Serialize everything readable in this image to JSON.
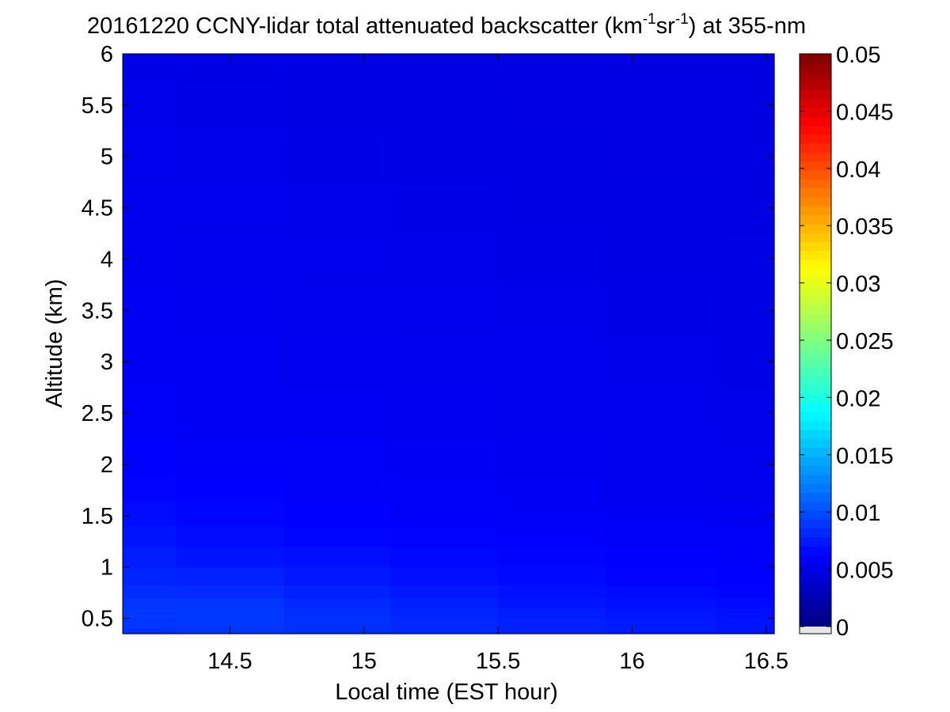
{
  "chart_data": {
    "type": "heatmap",
    "title": {
      "prefix": "20161220 CCNY-lidar total attenuated backscatter (km",
      "sup1": "-1",
      "middle": "sr",
      "sup2": "-1",
      "suffix": ") at 355-nm"
    },
    "xlabel": "Local time (EST hour)",
    "ylabel": "Altitude (km)",
    "xlim": [
      14.1,
      16.53
    ],
    "ylim": [
      0.35,
      6
    ],
    "xticks": [
      14.5,
      15,
      15.5,
      16,
      16.5
    ],
    "xtick_labels": [
      "14.5",
      "15",
      "15.5",
      "16",
      "16.5"
    ],
    "yticks": [
      0.5,
      1,
      1.5,
      2,
      2.5,
      3,
      3.5,
      4,
      4.5,
      5,
      5.5,
      6
    ],
    "ytick_labels": [
      "0.5",
      "1",
      "1.5",
      "2",
      "2.5",
      "3",
      "3.5",
      "4",
      "4.5",
      "5",
      "5.5",
      "6"
    ],
    "colorbar": {
      "colormap": "jet",
      "clim": [
        0,
        0.05
      ],
      "ticks": [
        0,
        0.005,
        0.01,
        0.015,
        0.02,
        0.025,
        0.03,
        0.035,
        0.04,
        0.045,
        0.05
      ],
      "tick_labels": [
        "0",
        "0.005",
        "0.01",
        "0.015",
        "0.02",
        "0.025",
        "0.03",
        "0.035",
        "0.04",
        "0.045",
        "0.05"
      ],
      "under_color": "#e6e6e6"
    },
    "x": [
      14.1,
      14.5,
      14.9,
      15.3,
      15.7,
      16.1,
      16.53
    ],
    "y": [
      0.35,
      0.45,
      0.55,
      0.65,
      0.75,
      0.9,
      1.1,
      1.3,
      1.5,
      1.75,
      2,
      2.5,
      3,
      3.5,
      4,
      4.5,
      5,
      5.5,
      6
    ],
    "values": [
      [
        0.0085,
        0.0088,
        0.0085,
        0.0082,
        0.0078,
        0.0075,
        0.0072
      ],
      [
        0.0088,
        0.009,
        0.0086,
        0.0082,
        0.0078,
        0.0075,
        0.0072
      ],
      [
        0.009,
        0.009,
        0.0085,
        0.008,
        0.0076,
        0.0073,
        0.007
      ],
      [
        0.0088,
        0.0088,
        0.0082,
        0.0077,
        0.0073,
        0.007,
        0.0067
      ],
      [
        0.0084,
        0.0083,
        0.0078,
        0.0074,
        0.007,
        0.0067,
        0.0064
      ],
      [
        0.008,
        0.0078,
        0.0074,
        0.007,
        0.0067,
        0.0064,
        0.0062
      ],
      [
        0.0076,
        0.0072,
        0.0069,
        0.0066,
        0.0064,
        0.0062,
        0.006
      ],
      [
        0.0072,
        0.0068,
        0.0065,
        0.0063,
        0.0061,
        0.0059,
        0.0058
      ],
      [
        0.0068,
        0.0065,
        0.0062,
        0.006,
        0.0058,
        0.0057,
        0.0056
      ],
      [
        0.0064,
        0.0062,
        0.006,
        0.0058,
        0.0057,
        0.0055,
        0.0054
      ],
      [
        0.0062,
        0.006,
        0.0058,
        0.0057,
        0.0055,
        0.0054,
        0.0053
      ],
      [
        0.0059,
        0.0057,
        0.0056,
        0.0055,
        0.0054,
        0.0053,
        0.0052
      ],
      [
        0.0057,
        0.0056,
        0.0055,
        0.0054,
        0.0053,
        0.0052,
        0.0051
      ],
      [
        0.0056,
        0.0055,
        0.0054,
        0.0053,
        0.0052,
        0.0051,
        0.005
      ],
      [
        0.0055,
        0.0054,
        0.0053,
        0.0052,
        0.0051,
        0.005,
        0.005
      ],
      [
        0.0054,
        0.0053,
        0.0052,
        0.0051,
        0.005,
        0.005,
        0.0049
      ],
      [
        0.0053,
        0.0052,
        0.0051,
        0.005,
        0.005,
        0.0049,
        0.0049
      ],
      [
        0.0052,
        0.0051,
        0.005,
        0.005,
        0.0049,
        0.0049,
        0.0048
      ],
      [
        0.0051,
        0.005,
        0.005,
        0.0049,
        0.0049,
        0.0048,
        0.0048
      ]
    ]
  }
}
